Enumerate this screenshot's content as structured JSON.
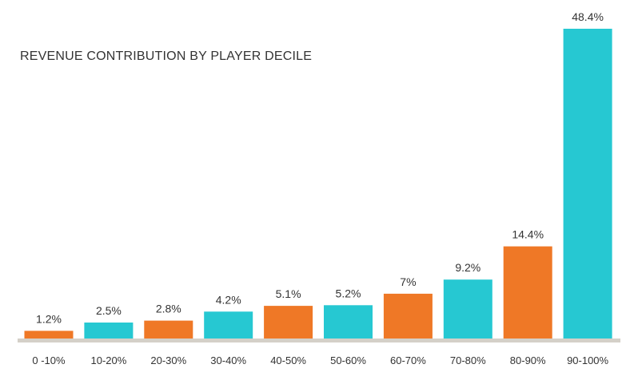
{
  "chart_data": {
    "type": "bar",
    "title": "REVENUE CONTRIBUTION BY PLAYER DECILE",
    "categories": [
      "0 -10%",
      "10-20%",
      "20-30%",
      "30-40%",
      "40-50%",
      "50-60%",
      "60-70%",
      "70-80%",
      "80-90%",
      "90-100%"
    ],
    "values": [
      1.2,
      2.5,
      2.8,
      4.2,
      5.1,
      5.2,
      7,
      9.2,
      14.4,
      48.4
    ],
    "value_labels": [
      "1.2%",
      "2.5%",
      "2.8%",
      "4.2%",
      "5.1%",
      "5.2%",
      "7%",
      "9.2%",
      "14.4%",
      "48.4%"
    ],
    "bar_colors": [
      "#ef7826",
      "#26c8d2",
      "#ef7826",
      "#26c8d2",
      "#ef7826",
      "#26c8d2",
      "#ef7826",
      "#26c8d2",
      "#ef7826",
      "#26c8d2"
    ],
    "baseline_color": "#d4d0c8",
    "xlabel": "",
    "ylabel": "",
    "ylim": [
      0,
      48.4
    ],
    "grid": false,
    "legend": "none"
  }
}
